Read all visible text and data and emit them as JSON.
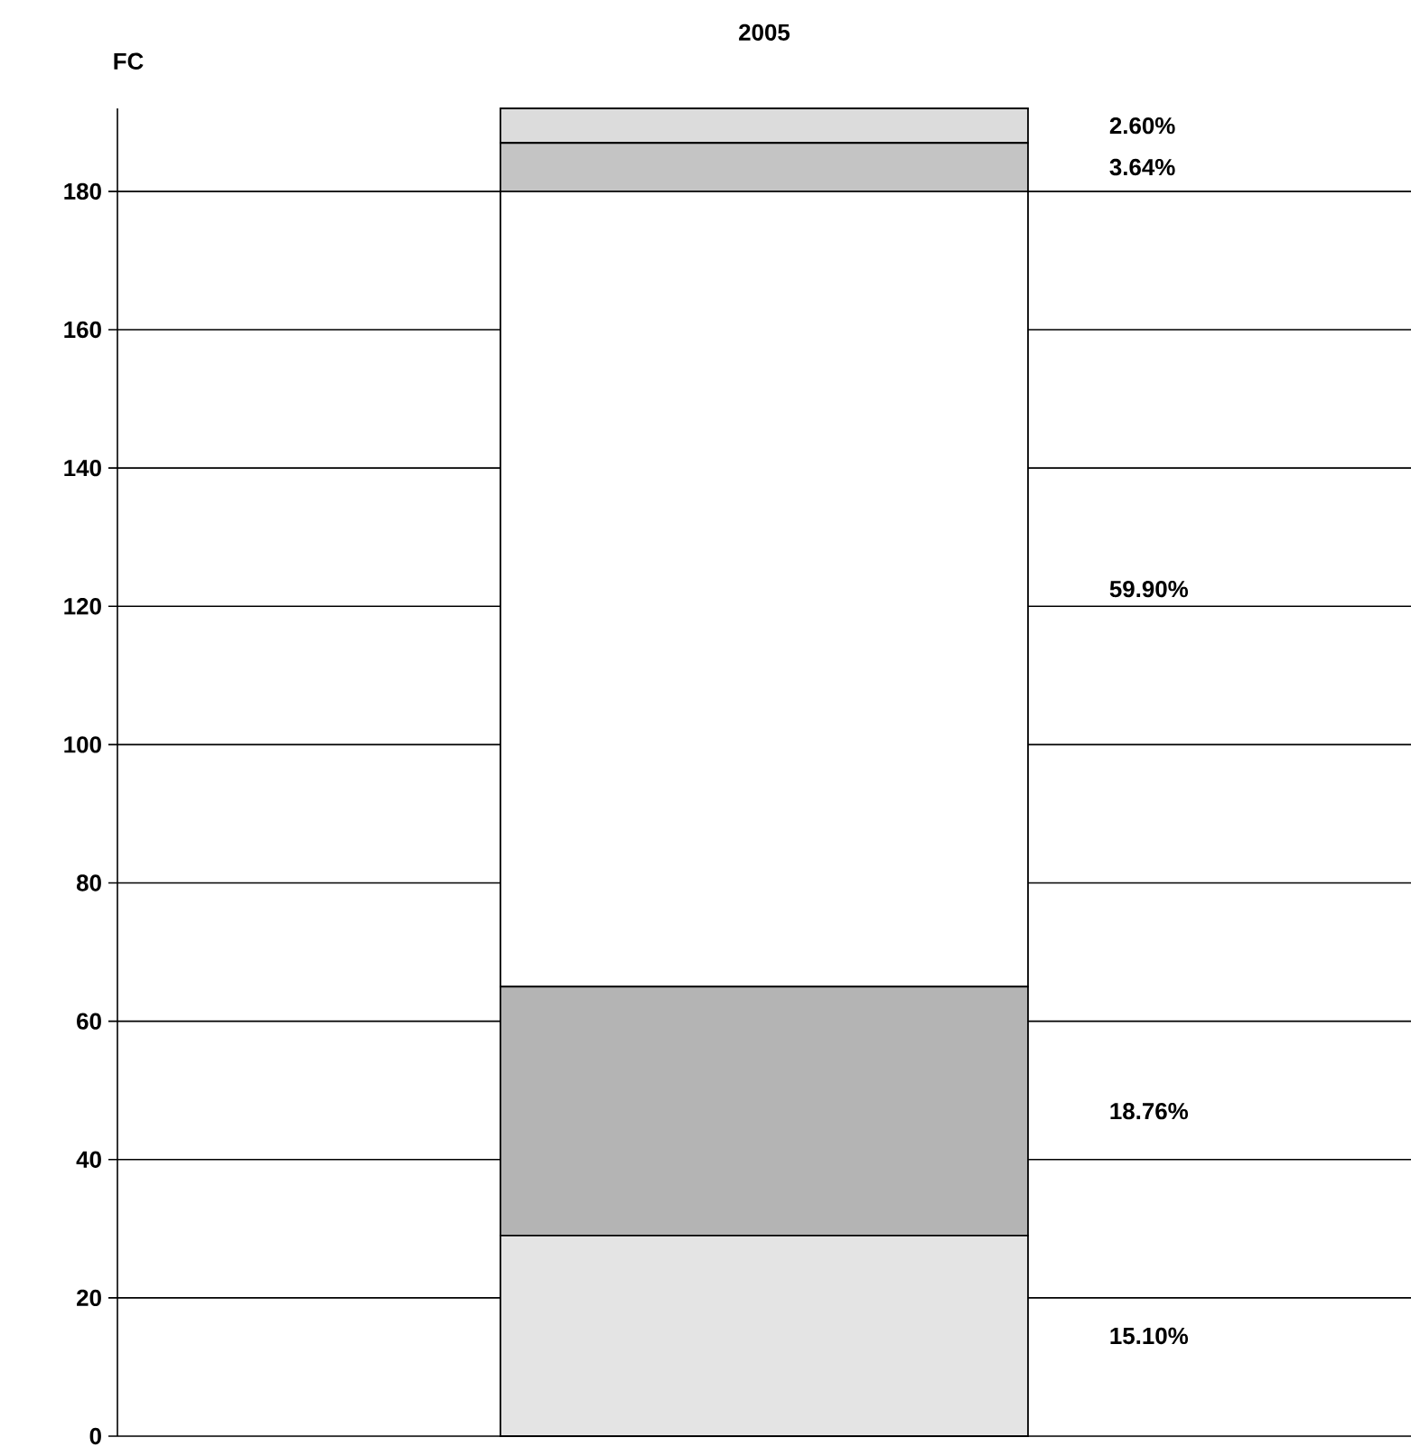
{
  "chart_data": {
    "type": "bar",
    "title": "2005",
    "ylabel": "FC",
    "stacked": true,
    "categories": [
      null
    ],
    "series": [
      {
        "color": "#e4e4e4",
        "values": [
          29
        ]
      },
      {
        "color": "#b4b4b4",
        "values": [
          36
        ]
      },
      {
        "color": "#ffffff",
        "values": [
          115
        ]
      },
      {
        "color": "#c4c4c4",
        "values": [
          7
        ]
      },
      {
        "color": "#dcdcdc",
        "values": [
          5
        ]
      }
    ],
    "annotations": [
      "15.10%",
      "18.76%",
      "59.90%",
      "3.64%",
      "2.60%"
    ],
    "ylim": [
      0,
      192
    ],
    "yticks": [
      0,
      20,
      40,
      60,
      80,
      100,
      120,
      140,
      160,
      180
    ],
    "grid": "y"
  }
}
